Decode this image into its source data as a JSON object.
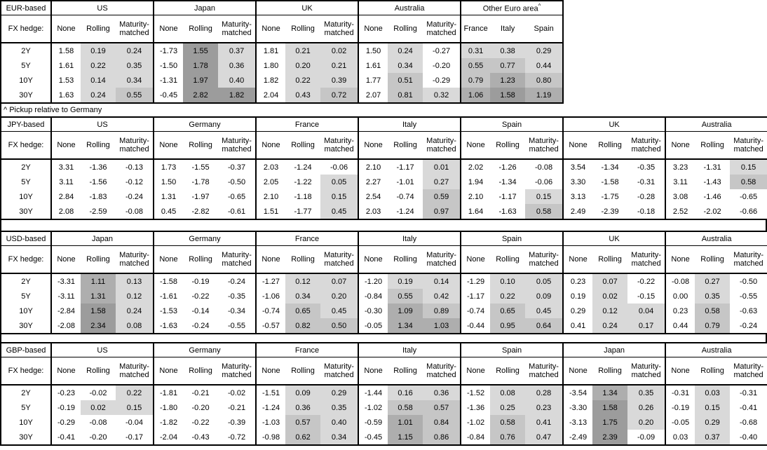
{
  "footnote": "^ Pickup relative to Germany",
  "shading": {
    "description": "grey heat shading applied only to hedged-return columns (Rolling, Maturity-matched) and to all pickup columns, when value >= 0",
    "negative_color": "#ffffff",
    "border_color": "#000000",
    "buckets": [
      {
        "max": 0.5,
        "color": "#d9d9d9"
      },
      {
        "max": 1.0,
        "color": "#c6c6c6"
      },
      {
        "max": 1.5,
        "color": "#aeaeae"
      },
      {
        "max": 99.0,
        "color": "#9c9c9c"
      }
    ]
  },
  "default_col_headers": [
    "None",
    "Rolling",
    "Maturity-matched"
  ],
  "row_labels": [
    "2Y",
    "5Y",
    "10Y",
    "30Y"
  ],
  "fx_hedge_label": "FX hedge:",
  "tables": [
    {
      "id": "eur",
      "base_label": "EUR-based",
      "groups": [
        {
          "name": "US",
          "rows": [
            [
              "1.58",
              "0.19",
              "0.24"
            ],
            [
              "1.61",
              "0.22",
              "0.35"
            ],
            [
              "1.53",
              "0.14",
              "0.34"
            ],
            [
              "1.63",
              "0.24",
              "0.55"
            ]
          ]
        },
        {
          "name": "Japan",
          "rows": [
            [
              "-1.73",
              "1.55",
              "0.37"
            ],
            [
              "-1.50",
              "1.78",
              "0.36"
            ],
            [
              "-1.31",
              "1.97",
              "0.40"
            ],
            [
              "-0.45",
              "2.82",
              "1.82"
            ]
          ]
        },
        {
          "name": "UK",
          "rows": [
            [
              "1.81",
              "0.21",
              "0.02"
            ],
            [
              "1.80",
              "0.20",
              "0.21"
            ],
            [
              "1.82",
              "0.22",
              "0.39"
            ],
            [
              "2.04",
              "0.43",
              "0.72"
            ]
          ]
        },
        {
          "name": "Australia",
          "rows": [
            [
              "1.50",
              "0.24",
              "-0.27"
            ],
            [
              "1.61",
              "0.34",
              "-0.20"
            ],
            [
              "1.77",
              "0.51",
              "-0.29"
            ],
            [
              "2.07",
              "0.81",
              "0.32"
            ]
          ]
        },
        {
          "name": "Other Euro area",
          "sup": "^",
          "shade_all": true,
          "col_headers": [
            "France",
            "Italy",
            "Spain"
          ],
          "rows": [
            [
              "0.31",
              "0.38",
              "0.29"
            ],
            [
              "0.55",
              "0.77",
              "0.44"
            ],
            [
              "0.79",
              "1.23",
              "0.80"
            ],
            [
              "1.06",
              "1.58",
              "1.19"
            ]
          ]
        }
      ]
    },
    {
      "id": "jpy",
      "base_label": "JPY-based",
      "groups": [
        {
          "name": "US",
          "rows": [
            [
              "3.31",
              "-1.36",
              "-0.13"
            ],
            [
              "3.11",
              "-1.56",
              "-0.12"
            ],
            [
              "2.84",
              "-1.83",
              "-0.24"
            ],
            [
              "2.08",
              "-2.59",
              "-0.08"
            ]
          ]
        },
        {
          "name": "Germany",
          "rows": [
            [
              "1.73",
              "-1.55",
              "-0.37"
            ],
            [
              "1.50",
              "-1.78",
              "-0.50"
            ],
            [
              "1.31",
              "-1.97",
              "-0.65"
            ],
            [
              "0.45",
              "-2.82",
              "-0.61"
            ]
          ]
        },
        {
          "name": "France",
          "rows": [
            [
              "2.03",
              "-1.24",
              "-0.06"
            ],
            [
              "2.05",
              "-1.22",
              "0.05"
            ],
            [
              "2.10",
              "-1.18",
              "0.15"
            ],
            [
              "1.51",
              "-1.77",
              "0.45"
            ]
          ]
        },
        {
          "name": "Italy",
          "rows": [
            [
              "2.10",
              "-1.17",
              "0.01"
            ],
            [
              "2.27",
              "-1.01",
              "0.27"
            ],
            [
              "2.54",
              "-0.74",
              "0.59"
            ],
            [
              "2.03",
              "-1.24",
              "0.97"
            ]
          ]
        },
        {
          "name": "Spain",
          "rows": [
            [
              "2.02",
              "-1.26",
              "-0.08"
            ],
            [
              "1.94",
              "-1.34",
              "-0.06"
            ],
            [
              "2.10",
              "-1.17",
              "0.15"
            ],
            [
              "1.64",
              "-1.63",
              "0.58"
            ]
          ]
        },
        {
          "name": "UK",
          "rows": [
            [
              "3.54",
              "-1.34",
              "-0.35"
            ],
            [
              "3.30",
              "-1.58",
              "-0.31"
            ],
            [
              "3.13",
              "-1.75",
              "-0.28"
            ],
            [
              "2.49",
              "-2.39",
              "-0.18"
            ]
          ]
        },
        {
          "name": "Australia",
          "rows": [
            [
              "3.23",
              "-1.31",
              "0.15"
            ],
            [
              "3.11",
              "-1.43",
              "0.58"
            ],
            [
              "3.08",
              "-1.46",
              "-0.65"
            ],
            [
              "2.52",
              "-2.02",
              "-0.66"
            ]
          ]
        }
      ]
    },
    {
      "id": "usd",
      "base_label": "USD-based",
      "groups": [
        {
          "name": "Japan",
          "rows": [
            [
              "-3.31",
              "1.11",
              "0.13"
            ],
            [
              "-3.11",
              "1.31",
              "0.12"
            ],
            [
              "-2.84",
              "1.58",
              "0.24"
            ],
            [
              "-2.08",
              "2.34",
              "0.08"
            ]
          ]
        },
        {
          "name": "Germany",
          "rows": [
            [
              "-1.58",
              "-0.19",
              "-0.24"
            ],
            [
              "-1.61",
              "-0.22",
              "-0.35"
            ],
            [
              "-1.53",
              "-0.14",
              "-0.34"
            ],
            [
              "-1.63",
              "-0.24",
              "-0.55"
            ]
          ]
        },
        {
          "name": "France",
          "rows": [
            [
              "-1.27",
              "0.12",
              "0.07"
            ],
            [
              "-1.06",
              "0.34",
              "0.20"
            ],
            [
              "-0.74",
              "0.65",
              "0.45"
            ],
            [
              "-0.57",
              "0.82",
              "0.50"
            ]
          ]
        },
        {
          "name": "Italy",
          "rows": [
            [
              "-1.20",
              "0.19",
              "0.14"
            ],
            [
              "-0.84",
              "0.55",
              "0.42"
            ],
            [
              "-0.30",
              "1.09",
              "0.89"
            ],
            [
              "-0.05",
              "1.34",
              "1.03"
            ]
          ]
        },
        {
          "name": "Spain",
          "rows": [
            [
              "-1.29",
              "0.10",
              "0.05"
            ],
            [
              "-1.17",
              "0.22",
              "0.09"
            ],
            [
              "-0.74",
              "0.65",
              "0.45"
            ],
            [
              "-0.44",
              "0.95",
              "0.64"
            ]
          ]
        },
        {
          "name": "UK",
          "rows": [
            [
              "0.23",
              "0.07",
              "-0.22"
            ],
            [
              "0.19",
              "0.02",
              "-0.15"
            ],
            [
              "0.29",
              "0.12",
              "0.04"
            ],
            [
              "0.41",
              "0.24",
              "0.17"
            ]
          ]
        },
        {
          "name": "Australia",
          "rows": [
            [
              "-0.08",
              "0.27",
              "-0.50"
            ],
            [
              "0.00",
              "0.35",
              "-0.55"
            ],
            [
              "0.23",
              "0.58",
              "-0.63"
            ],
            [
              "0.44",
              "0.79",
              "-0.24"
            ]
          ]
        }
      ]
    },
    {
      "id": "gbp",
      "base_label": "GBP-based",
      "groups": [
        {
          "name": "US",
          "rows": [
            [
              "-0.23",
              "-0.02",
              "0.22"
            ],
            [
              "-0.19",
              "0.02",
              "0.15"
            ],
            [
              "-0.29",
              "-0.08",
              "-0.04"
            ],
            [
              "-0.41",
              "-0.20",
              "-0.17"
            ]
          ]
        },
        {
          "name": "Germany",
          "rows": [
            [
              "-1.81",
              "-0.21",
              "-0.02"
            ],
            [
              "-1.80",
              "-0.20",
              "-0.21"
            ],
            [
              "-1.82",
              "-0.22",
              "-0.39"
            ],
            [
              "-2.04",
              "-0.43",
              "-0.72"
            ]
          ]
        },
        {
          "name": "France",
          "rows": [
            [
              "-1.51",
              "0.09",
              "0.29"
            ],
            [
              "-1.24",
              "0.36",
              "0.35"
            ],
            [
              "-1.03",
              "0.57",
              "0.40"
            ],
            [
              "-0.98",
              "0.62",
              "0.34"
            ]
          ]
        },
        {
          "name": "Italy",
          "rows": [
            [
              "-1.44",
              "0.16",
              "0.36"
            ],
            [
              "-1.02",
              "0.58",
              "0.57"
            ],
            [
              "-0.59",
              "1.01",
              "0.84"
            ],
            [
              "-0.45",
              "1.15",
              "0.86"
            ]
          ]
        },
        {
          "name": "Spain",
          "rows": [
            [
              "-1.52",
              "0.08",
              "0.28"
            ],
            [
              "-1.36",
              "0.25",
              "0.23"
            ],
            [
              "-1.02",
              "0.58",
              "0.41"
            ],
            [
              "-0.84",
              "0.76",
              "0.47"
            ]
          ]
        },
        {
          "name": "Japan",
          "rows": [
            [
              "-3.54",
              "1.34",
              "0.35"
            ],
            [
              "-3.30",
              "1.58",
              "0.26"
            ],
            [
              "-3.13",
              "1.75",
              "0.20"
            ],
            [
              "-2.49",
              "2.39",
              "-0.09"
            ]
          ]
        },
        {
          "name": "Australia",
          "rows": [
            [
              "-0.31",
              "0.03",
              "-0.31"
            ],
            [
              "-0.19",
              "0.15",
              "-0.41"
            ],
            [
              "-0.05",
              "0.29",
              "-0.68"
            ],
            [
              "0.03",
              "0.37",
              "-0.40"
            ]
          ]
        }
      ]
    }
  ]
}
